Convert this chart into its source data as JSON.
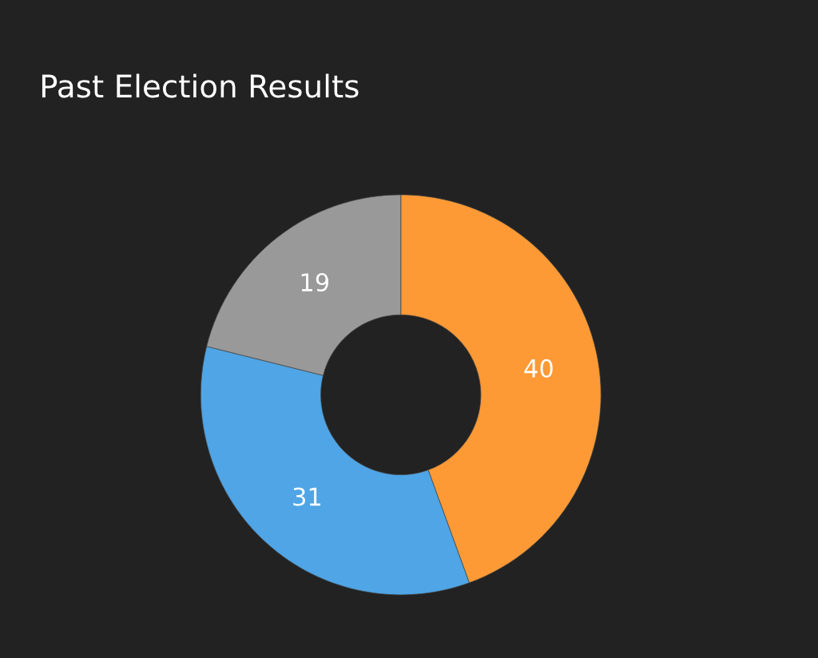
{
  "chart_data": {
    "type": "donut",
    "title": "Past Election Results",
    "categories": [
      null,
      null,
      null
    ],
    "values": [
      40,
      31,
      19
    ],
    "colors": [
      "#fe9a35",
      "#4fa5e5",
      "#999999"
    ],
    "data_labels": true,
    "legend": false
  }
}
